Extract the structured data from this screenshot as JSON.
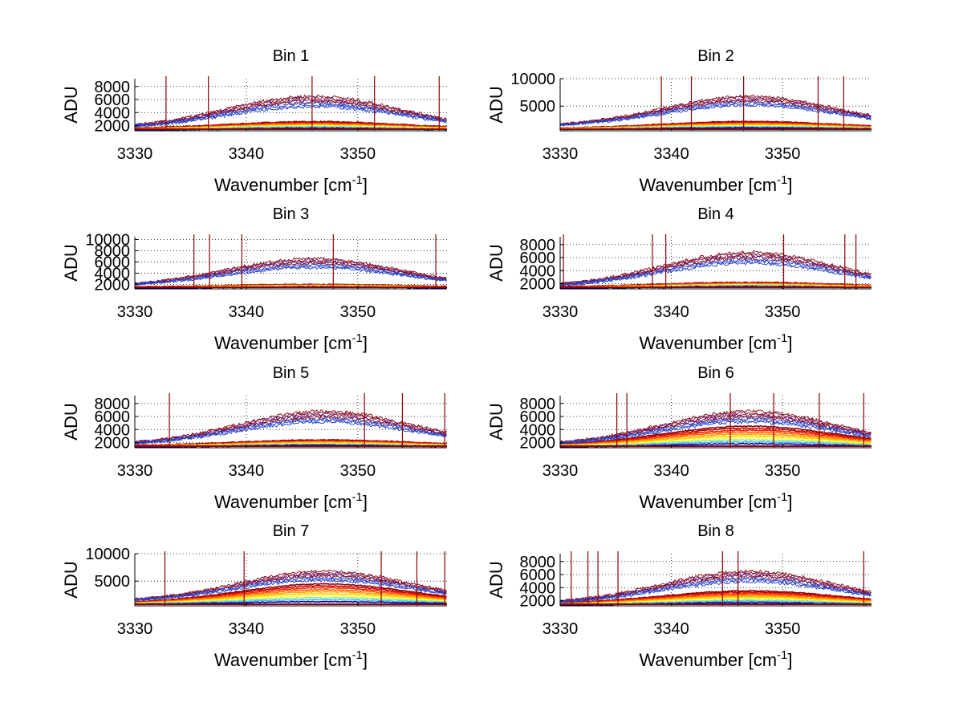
{
  "chart_data": [
    {
      "type": "line",
      "title": "Bin 1",
      "xlabel": "Wavenumber [cm",
      "xlabel_sup": "-1",
      "xlabel_end": "]",
      "ylabel": "ADU",
      "xlim": [
        3330,
        3358
      ],
      "ylim": [
        1200,
        9200
      ],
      "xticks": [
        3330,
        3340,
        3350
      ],
      "yticks": [
        2000,
        4000,
        6000,
        8000
      ],
      "grid": true,
      "series_summary": {
        "upper_peak": 6500,
        "upper_center": 3346,
        "upper_width": 11,
        "upper_base": 1500,
        "lower_peak": 2600,
        "lower_base": 1500,
        "spikes": [
          3332.8,
          3336.6,
          3345.9,
          3351.5,
          3357.3
        ]
      }
    },
    {
      "type": "line",
      "title": "Bin 2",
      "xlabel": "Wavenumber [cm",
      "xlabel_sup": "-1",
      "xlabel_end": "]",
      "ylabel": "ADU",
      "xlim": [
        3330,
        3358
      ],
      "ylim": [
        500,
        10000
      ],
      "xticks": [
        3330,
        3340,
        3350
      ],
      "yticks": [
        5000,
        10000
      ],
      "grid": true,
      "series_summary": {
        "upper_peak": 6800,
        "upper_center": 3347,
        "upper_width": 11,
        "upper_base": 1200,
        "lower_peak": 2200,
        "lower_base": 900,
        "spikes": [
          3339.1,
          3341.8,
          3346.5,
          3353.2,
          3355.5
        ]
      }
    },
    {
      "type": "line",
      "title": "Bin 3",
      "xlabel": "Wavenumber [cm",
      "xlabel_sup": "-1",
      "xlabel_end": "]",
      "ylabel": "ADU",
      "xlim": [
        3330,
        3358
      ],
      "ylim": [
        1200,
        10500
      ],
      "xticks": [
        3330,
        3340,
        3350
      ],
      "yticks": [
        2000,
        4000,
        6000,
        8000,
        10000
      ],
      "grid": true,
      "series_summary": {
        "upper_peak": 6600,
        "upper_center": 3346,
        "upper_width": 11,
        "upper_base": 1600,
        "lower_peak": 2000,
        "lower_base": 1500,
        "spikes": [
          3335.3,
          3336.7,
          3339.6,
          3347.8,
          3357.0
        ]
      }
    },
    {
      "type": "line",
      "title": "Bin 4",
      "xlabel": "Wavenumber [cm",
      "xlabel_sup": "-1",
      "xlabel_end": "]",
      "ylabel": "ADU",
      "xlim": [
        3330,
        3358
      ],
      "ylim": [
        1200,
        9200
      ],
      "xticks": [
        3330,
        3340,
        3350
      ],
      "yticks": [
        2000,
        4000,
        6000,
        8000
      ],
      "grid": true,
      "series_summary": {
        "upper_peak": 6800,
        "upper_center": 3347,
        "upper_width": 11,
        "upper_base": 1500,
        "lower_peak": 2200,
        "lower_base": 1500,
        "spikes": [
          3330.3,
          3338.3,
          3339.5,
          3350.1,
          3355.6,
          3356.6
        ]
      }
    },
    {
      "type": "line",
      "title": "Bin 5",
      "xlabel": "Wavenumber [cm",
      "xlabel_sup": "-1",
      "xlabel_end": "]",
      "ylabel": "ADU",
      "xlim": [
        3330,
        3358
      ],
      "ylim": [
        1200,
        9200
      ],
      "xticks": [
        3330,
        3340,
        3350
      ],
      "yticks": [
        2000,
        4000,
        6000,
        8000
      ],
      "grid": true,
      "series_summary": {
        "upper_peak": 6800,
        "upper_center": 3347,
        "upper_width": 11,
        "upper_base": 1600,
        "lower_peak": 2400,
        "lower_base": 1500,
        "spikes": [
          3333.1,
          3350.6,
          3354.0,
          3357.8
        ]
      }
    },
    {
      "type": "line",
      "title": "Bin 6",
      "xlabel": "Wavenumber [cm",
      "xlabel_sup": "-1",
      "xlabel_end": "]",
      "ylabel": "ADU",
      "xlim": [
        3330,
        3358
      ],
      "ylim": [
        1200,
        9200
      ],
      "xticks": [
        3330,
        3340,
        3350
      ],
      "yticks": [
        2000,
        4000,
        6000,
        8000
      ],
      "grid": true,
      "series_summary": {
        "upper_peak": 6800,
        "upper_center": 3347,
        "upper_width": 11,
        "upper_base": 1600,
        "lower_peak": 4500,
        "lower_base": 1500,
        "spikes": [
          3335.1,
          3336.0,
          3345.3,
          3349.2,
          3353.3,
          3357.3
        ]
      }
    },
    {
      "type": "line",
      "title": "Bin 7",
      "xlabel": "Wavenumber [cm",
      "xlabel_sup": "-1",
      "xlabel_end": "]",
      "ylabel": "ADU",
      "xlim": [
        3330,
        3358
      ],
      "ylim": [
        500,
        10000
      ],
      "xticks": [
        3330,
        3340,
        3350
      ],
      "yticks": [
        5000,
        10000
      ],
      "grid": true,
      "series_summary": {
        "upper_peak": 6800,
        "upper_center": 3347,
        "upper_width": 11,
        "upper_base": 1200,
        "lower_peak": 4500,
        "lower_base": 900,
        "spikes": [
          3332.7,
          3339.8,
          3352.1,
          3355.3,
          3357.8
        ]
      }
    },
    {
      "type": "line",
      "title": "Bin 8",
      "xlabel": "Wavenumber [cm",
      "xlabel_sup": "-1",
      "xlabel_end": "]",
      "ylabel": "ADU",
      "xlim": [
        3330,
        3358
      ],
      "ylim": [
        1200,
        9200
      ],
      "xticks": [
        3330,
        3340,
        3350
      ],
      "yticks": [
        2000,
        4000,
        6000,
        8000
      ],
      "grid": true,
      "series_summary": {
        "upper_peak": 6500,
        "upper_center": 3347,
        "upper_width": 11,
        "upper_base": 1500,
        "lower_peak": 3500,
        "lower_base": 1500,
        "spikes": [
          3331.0,
          3332.5,
          3333.4,
          3335.2,
          3344.6,
          3346.0,
          3357.3
        ]
      }
    }
  ]
}
